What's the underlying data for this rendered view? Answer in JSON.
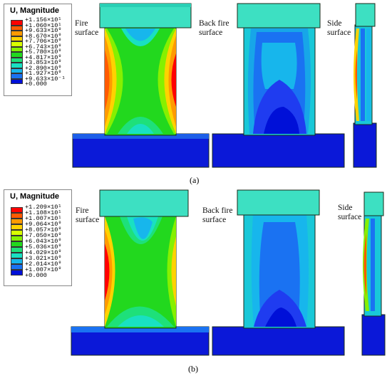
{
  "panels": [
    {
      "id": "a",
      "caption": "(a)",
      "legend": {
        "title": "U, Magnitude",
        "ticks": [
          "+1.156×10¹",
          "+1.060×10¹",
          "+9.633×10⁰",
          "+8.670×10⁰",
          "+7.706×10⁰",
          "+6.743×10⁰",
          "+5.780×10⁰",
          "+4.817×10⁰",
          "+3.853×10⁰",
          "+2.890×10⁰",
          "+1.927×10⁰",
          "+9.633×10⁻¹",
          "+0.000"
        ]
      },
      "views": [
        {
          "label_line1": "Fire",
          "label_line2": "surface"
        },
        {
          "label_line1": "Back fire",
          "label_line2": "surface"
        },
        {
          "label_line1": "Side",
          "label_line2": "surface"
        }
      ]
    },
    {
      "id": "b",
      "caption": "(b)",
      "legend": {
        "title": "U, Magnitude",
        "ticks": [
          "+1.209×10¹",
          "+1.108×10¹",
          "+1.007×10¹",
          "+9.064×10⁰",
          "+8.057×10⁰",
          "+7.050×10⁰",
          "+6.043×10⁰",
          "+5.036×10⁰",
          "+4.029×10⁰",
          "+3.021×10⁰",
          "+2.014×10⁰",
          "+1.007×10⁰",
          "+0.000"
        ]
      },
      "views": [
        {
          "label_line1": "Fire",
          "label_line2": "surface"
        },
        {
          "label_line1": "Back fire",
          "label_line2": "surface"
        },
        {
          "label_line1": "Side",
          "label_line2": "surface"
        }
      ]
    }
  ],
  "colors": {
    "contour_scale": [
      "#ff0000",
      "#ff5a00",
      "#ff9a00",
      "#ffd200",
      "#d8ff00",
      "#86f000",
      "#22d81e",
      "#1ee07a",
      "#19e0c2",
      "#17b6ec",
      "#1a72f2",
      "#1f3cf0",
      "#0010d8"
    ],
    "cap": "#3de0c2",
    "base": "#0b18d8",
    "outline": "#1a2a1a"
  }
}
